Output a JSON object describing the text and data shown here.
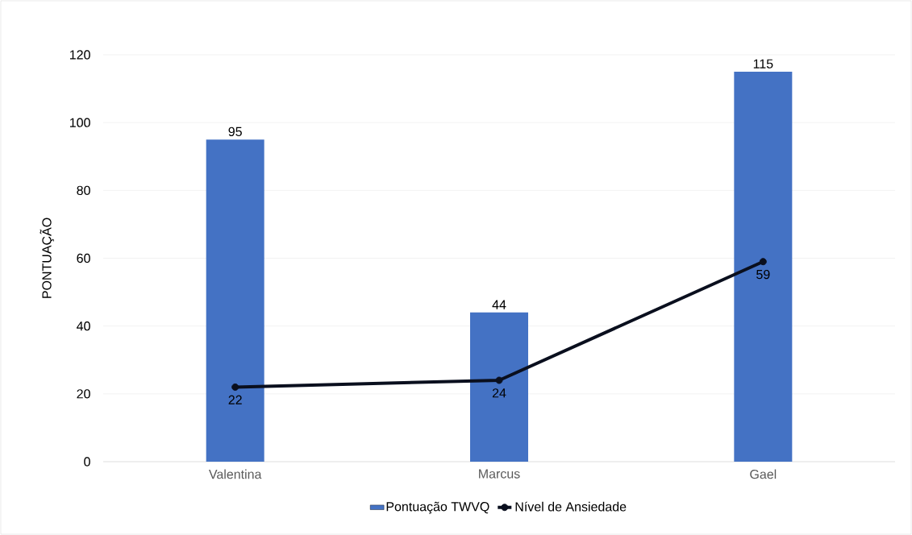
{
  "chart_data": {
    "type": "bar",
    "ylabel": "PONTUAÇÃO",
    "categories": [
      "Valentina",
      "Marcus",
      "Gael"
    ],
    "series": [
      {
        "name": "Pontuação TWVQ",
        "color": "#4472c4",
        "values": [
          95,
          44,
          115
        ]
      },
      {
        "name": "Nível de Ansiedade",
        "type": "line",
        "color": "#0a0f1e",
        "values": [
          22,
          24,
          59
        ]
      }
    ],
    "ylim": [
      0,
      120
    ],
    "yticks": [
      0,
      20,
      40,
      60,
      80,
      100,
      120
    ],
    "grid": "y",
    "legend": "bottom",
    "marker": "circle",
    "data_labels": true
  }
}
